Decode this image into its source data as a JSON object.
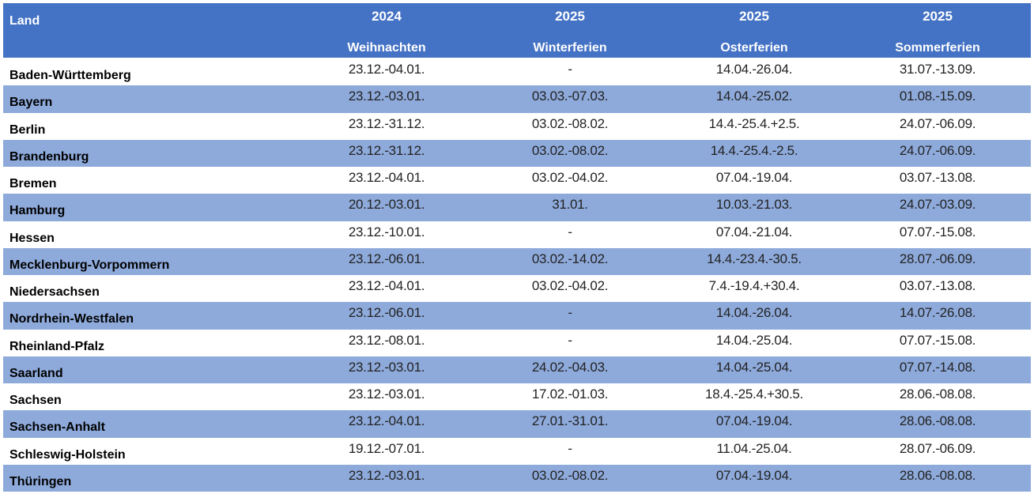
{
  "header": {
    "land": "Land",
    "columns": [
      {
        "year": "2024",
        "name": "Weihnachten"
      },
      {
        "year": "2025",
        "name": "Winterferien"
      },
      {
        "year": "2025",
        "name": "Osterferien"
      },
      {
        "year": "2025",
        "name": "Sommerferien"
      }
    ]
  },
  "table": {
    "rows": [
      [
        "Baden-Württemberg",
        "23.12.-04.01.",
        "-",
        "14.04.-26.04.",
        "31.07.-13.09."
      ],
      [
        "Bayern",
        "23.12.-03.01.",
        "03.03.-07.03.",
        "14.04.-25.02.",
        "01.08.-15.09."
      ],
      [
        "Berlin",
        "23.12.-31.12.",
        "03.02.-08.02.",
        "14.4.-25.4.+2.5.",
        "24.07.-06.09."
      ],
      [
        "Brandenburg",
        "23.12.-31.12.",
        "03.02.-08.02.",
        "14.4.-25.4.-2.5.",
        "24.07.-06.09."
      ],
      [
        "Bremen",
        "23.12.-04.01.",
        "03.02.-04.02.",
        "07.04.-19.04.",
        "03.07.-13.08."
      ],
      [
        "Hamburg",
        "20.12.-03.01.",
        "31.01.",
        "10.03.-21.03.",
        "24.07.-03.09."
      ],
      [
        "Hessen",
        "23.12.-10.01.",
        "-",
        "07.04.-21.04.",
        "07.07.-15.08."
      ],
      [
        "Mecklenburg-Vorpommern",
        "23.12.-06.01.",
        "03.02.-14.02.",
        "14.4.-23.4.-30.5.",
        "28.07.-06.09."
      ],
      [
        "Niedersachsen",
        "23.12.-04.01.",
        "03.02.-04.02.",
        "7.4.-19.4.+30.4.",
        "03.07.-13.08."
      ],
      [
        "Nordrhein-Westfalen",
        "23.12.-06.01.",
        "-",
        "14.04.-26.04.",
        "14.07.-26.08."
      ],
      [
        "Rheinland-Pfalz",
        "23.12.-08.01.",
        "-",
        "14.04.-25.04.",
        "07.07.-15.08."
      ],
      [
        "Saarland",
        "23.12.-03.01.",
        "24.02.-04.03.",
        "14.04.-25.04.",
        "07.07.-14.08."
      ],
      [
        "Sachsen",
        "23.12.-03.01.",
        "17.02.-01.03.",
        "18.4.-25.4.+30.5.",
        "28.06.-08.08."
      ],
      [
        "Sachsen-Anhalt",
        "23.12.-04.01.",
        "27.01.-31.01.",
        "07.04.-19.04.",
        "28.06.-08.08."
      ],
      [
        "Schleswig-Holstein",
        "19.12.-07.01.",
        "-",
        "11.04.-25.04.",
        "28.07.-06.09."
      ],
      [
        "Thüringen",
        "23.12.-03.01.",
        "03.02.-08.02.",
        "07.04.-19.04.",
        "28.06.-08.08."
      ]
    ]
  }
}
